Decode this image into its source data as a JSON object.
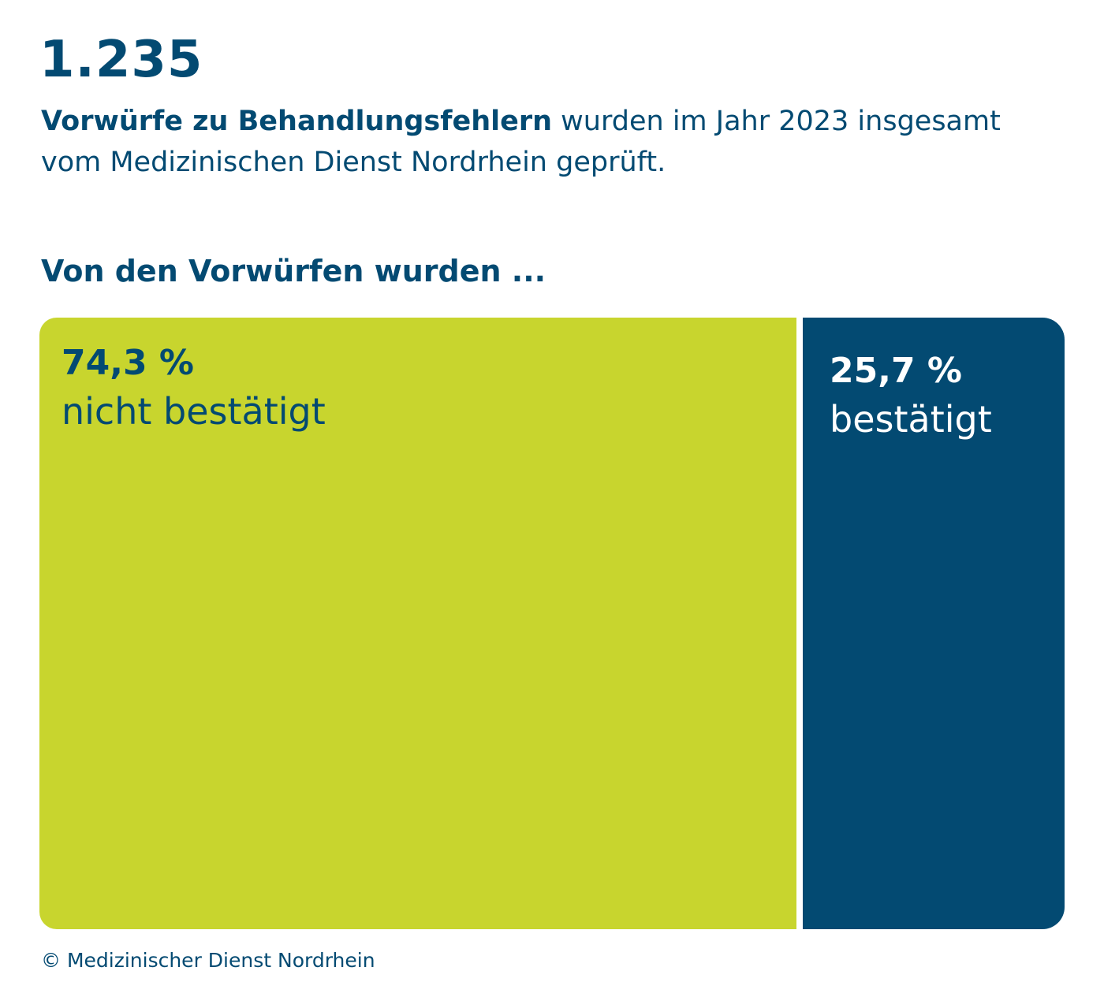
{
  "header": {
    "total": "1.235",
    "intro_bold": "Vorwürfe zu Behandlungsfehlern",
    "intro_rest": " wurden im Jahr 2023 insgesamt vom Medizinischen Dienst Nordrhein geprüft.",
    "section_heading": "Von den Vorwürfen wurden ..."
  },
  "chart_data": {
    "type": "treemap",
    "unit": "%",
    "segments": [
      {
        "label": "nicht bestätigt",
        "value": 74.3,
        "value_label": "74,3 %",
        "color": "#c8d52e",
        "text_color": "#034a72"
      },
      {
        "label": "bestätigt",
        "value": 25.7,
        "value_label": "25,7 %",
        "color": "#034a72",
        "text_color": "#ffffff"
      }
    ]
  },
  "footer": {
    "copyright": "© Medizinischer Dienst Nordrhein"
  }
}
